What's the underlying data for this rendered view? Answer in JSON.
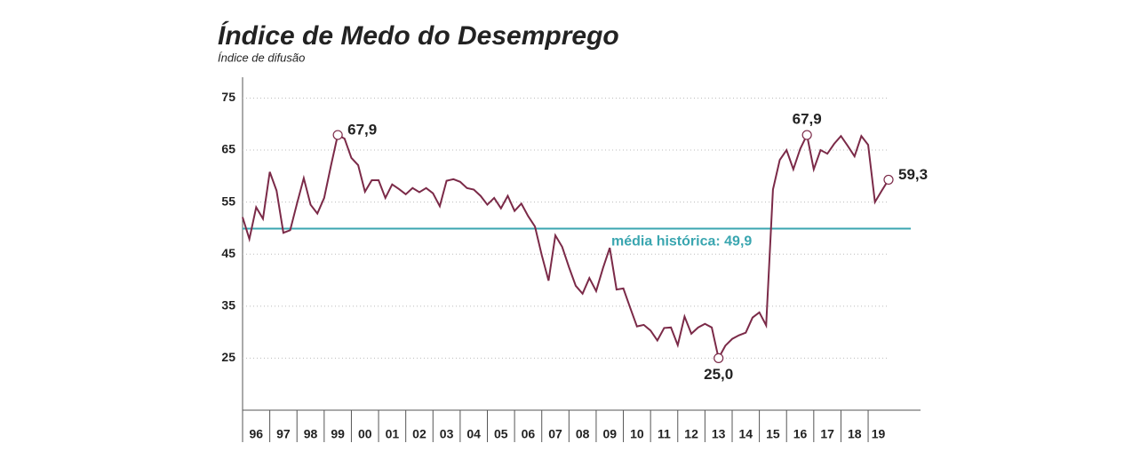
{
  "chart_data": {
    "type": "line",
    "title": "Índice de Medo do Desemprego",
    "subtitle": "Índice de difusão",
    "color": "#7b2a48",
    "x": [
      1996,
      1996.25,
      1996.5,
      1996.75,
      1997,
      1997.25,
      1997.5,
      1997.75,
      1998,
      1998.25,
      1998.5,
      1998.75,
      1999,
      1999.25,
      1999.5,
      1999.75,
      2000,
      2000.25,
      2000.5,
      2000.75,
      2001,
      2001.25,
      2001.5,
      2001.75,
      2002,
      2002.25,
      2002.5,
      2002.75,
      2003,
      2003.25,
      2003.5,
      2003.75,
      2004,
      2004.25,
      2004.5,
      2004.75,
      2005,
      2005.25,
      2005.5,
      2005.75,
      2006,
      2006.25,
      2006.5,
      2006.75,
      2007,
      2007.25,
      2007.5,
      2007.75,
      2008,
      2008.25,
      2008.5,
      2008.75,
      2009,
      2009.25,
      2009.5,
      2009.75,
      2010,
      2010.25,
      2010.5,
      2010.75,
      2011,
      2011.25,
      2011.5,
      2011.75,
      2012,
      2012.25,
      2012.5,
      2012.75,
      2013,
      2013.25,
      2013.5,
      2013.75,
      2014,
      2014.25,
      2014.5,
      2014.75,
      2015,
      2015.25,
      2015.5,
      2015.75,
      2016,
      2016.25,
      2016.5,
      2016.75,
      2017,
      2017.25,
      2017.5,
      2017.75,
      2018,
      2018.25,
      2018.5,
      2018.75,
      2019,
      2019.25,
      2019.5,
      2019.75
    ],
    "values": [
      52.1,
      47.9,
      54,
      51.8,
      60.8,
      57.2,
      49.1,
      49.6,
      54.7,
      59.6,
      54.5,
      52.8,
      55.8,
      62,
      67.9,
      67.2,
      63.5,
      62.1,
      57,
      59.2,
      59.2,
      55.8,
      58.4,
      57.5,
      56.5,
      57.7,
      56.9,
      57.7,
      56.7,
      54.2,
      59.1,
      59.4,
      58.9,
      57.7,
      57.4,
      56.2,
      54.5,
      55.8,
      53.8,
      56.2,
      53.3,
      54.7,
      52.3,
      50.3,
      44.8,
      39.9,
      48.6,
      46.4,
      42.5,
      38.9,
      37.4,
      40.4,
      37.9,
      42.3,
      46.2,
      38.2,
      38.4,
      34.7,
      31.1,
      31.4,
      30.3,
      28.4,
      30.8,
      30.9,
      27.5,
      33,
      29.7,
      30.9,
      31.6,
      30.9,
      25,
      27.4,
      28.7,
      29.4,
      29.9,
      32.8,
      33.8,
      31.3,
      57.4,
      63.1,
      65,
      61.3,
      65.2,
      67.9,
      61.3,
      65,
      64.3,
      66.2,
      67.7,
      65.8,
      63.8,
      67.7,
      66,
      55,
      57.2,
      59.3
    ],
    "xlim": [
      1996,
      2019.75
    ],
    "xticks": [
      {
        "value": 1996,
        "label": "96"
      },
      {
        "value": 1997,
        "label": "97"
      },
      {
        "value": 1998,
        "label": "98"
      },
      {
        "value": 1999,
        "label": "99"
      },
      {
        "value": 2000,
        "label": "00"
      },
      {
        "value": 2001,
        "label": "01"
      },
      {
        "value": 2002,
        "label": "02"
      },
      {
        "value": 2003,
        "label": "03"
      },
      {
        "value": 2004,
        "label": "04"
      },
      {
        "value": 2005,
        "label": "05"
      },
      {
        "value": 2006,
        "label": "06"
      },
      {
        "value": 2007,
        "label": "07"
      },
      {
        "value": 2008,
        "label": "08"
      },
      {
        "value": 2009,
        "label": "09"
      },
      {
        "value": 2010,
        "label": "10"
      },
      {
        "value": 2011,
        "label": "11"
      },
      {
        "value": 2012,
        "label": "12"
      },
      {
        "value": 2013,
        "label": "13"
      },
      {
        "value": 2014,
        "label": "14"
      },
      {
        "value": 2015,
        "label": "15"
      },
      {
        "value": 2016,
        "label": "16"
      },
      {
        "value": 2017,
        "label": "17"
      },
      {
        "value": 2018,
        "label": "18"
      },
      {
        "value": 2019,
        "label": "19"
      }
    ],
    "ylim": [
      15,
      79
    ],
    "yticks": [
      25,
      35,
      45,
      55,
      65,
      75
    ],
    "grid": true,
    "reference_line": {
      "value": 49.9,
      "label": "média histórica: 49,9",
      "color": "#3aa6b0"
    },
    "annotations": [
      {
        "x": 1999.5,
        "y": 67.9,
        "label": "67,9",
        "label_position": "right"
      },
      {
        "x": 2016.75,
        "y": 67.9,
        "label": "67,9",
        "label_position": "above"
      },
      {
        "x": 2013.5,
        "y": 25,
        "label": "25,0",
        "label_position": "below"
      },
      {
        "x": 2019.75,
        "y": 59.3,
        "label": "59,3",
        "label_position": "right"
      }
    ]
  }
}
